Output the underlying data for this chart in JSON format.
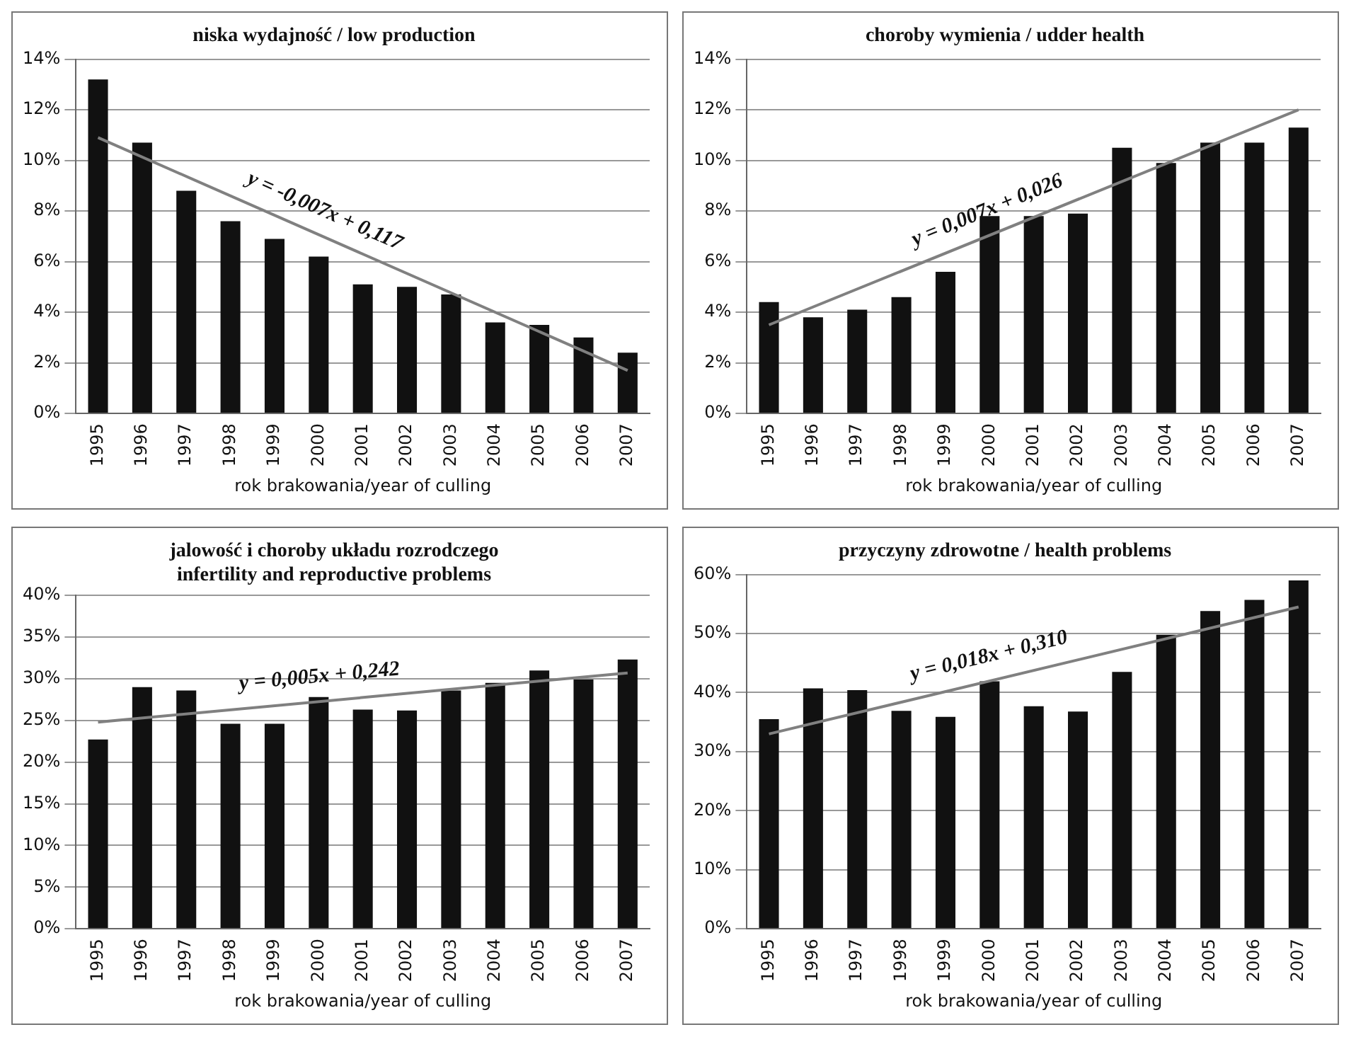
{
  "chart_data": [
    {
      "type": "bar",
      "title": "niska wydajność / low production",
      "xlabel": "rok brakowania/year of culling",
      "categories": [
        "1995",
        "1996",
        "1997",
        "1998",
        "1999",
        "2000",
        "2001",
        "2002",
        "2003",
        "2004",
        "2005",
        "2006",
        "2007"
      ],
      "series": [
        {
          "color": "#111111",
          "values": [
            13.2,
            10.7,
            8.8,
            7.6,
            6.9,
            6.2,
            5.1,
            5.0,
            4.7,
            3.6,
            3.5,
            3.0,
            2.4
          ]
        },
        {
          "type": "line",
          "color": "#808080",
          "values": [
            10.9,
            null,
            null,
            null,
            null,
            null,
            null,
            null,
            null,
            null,
            null,
            null,
            1.7
          ]
        }
      ],
      "ylim": [
        0,
        14
      ],
      "yticks": [
        {
          "value": 0,
          "label": "0%"
        },
        {
          "value": 2,
          "label": "2%"
        },
        {
          "value": 4,
          "label": "4%"
        },
        {
          "value": 6,
          "label": "6%"
        },
        {
          "value": 8,
          "label": "8%"
        },
        {
          "value": 10,
          "label": "10%"
        },
        {
          "value": 12,
          "label": "12%"
        },
        {
          "value": 14,
          "label": "14%"
        }
      ],
      "grid": "y",
      "annotations": [
        "y = -0,007x + 0,117"
      ]
    },
    {
      "type": "bar",
      "title": "choroby wymienia / udder health",
      "xlabel": "rok brakowania/year of culling",
      "categories": [
        "1995",
        "1996",
        "1997",
        "1998",
        "1999",
        "2000",
        "2001",
        "2002",
        "2003",
        "2004",
        "2005",
        "2006",
        "2007"
      ],
      "series": [
        {
          "color": "#111111",
          "values": [
            4.4,
            3.8,
            4.1,
            4.6,
            5.6,
            7.8,
            7.8,
            7.9,
            10.5,
            9.9,
            10.7,
            10.7,
            11.3
          ]
        },
        {
          "type": "line",
          "color": "#808080",
          "values": [
            3.5,
            null,
            null,
            null,
            null,
            null,
            null,
            null,
            null,
            null,
            null,
            null,
            12.0
          ]
        }
      ],
      "ylim": [
        0,
        14
      ],
      "yticks": [
        {
          "value": 0,
          "label": "0%"
        },
        {
          "value": 2,
          "label": "2%"
        },
        {
          "value": 4,
          "label": "4%"
        },
        {
          "value": 6,
          "label": "6%"
        },
        {
          "value": 8,
          "label": "8%"
        },
        {
          "value": 10,
          "label": "10%"
        },
        {
          "value": 12,
          "label": "12%"
        },
        {
          "value": 14,
          "label": "14%"
        }
      ],
      "grid": "y",
      "annotations": [
        "y = 0,007x + 0,026"
      ]
    },
    {
      "type": "bar",
      "title": "jalowość i choroby układu rozrodczego",
      "subtitle": "infertility and reproductive problems",
      "xlabel": "rok brakowania/year of culling",
      "categories": [
        "1995",
        "1996",
        "1997",
        "1998",
        "1999",
        "2000",
        "2001",
        "2002",
        "2003",
        "2004",
        "2005",
        "2006",
        "2007"
      ],
      "series": [
        {
          "color": "#111111",
          "values": [
            22.7,
            29.0,
            28.6,
            24.6,
            24.6,
            27.8,
            26.3,
            26.2,
            28.6,
            29.5,
            31.0,
            29.9,
            32.3
          ]
        },
        {
          "type": "line",
          "color": "#808080",
          "values": [
            24.8,
            null,
            null,
            null,
            null,
            null,
            null,
            null,
            null,
            null,
            null,
            null,
            30.7
          ]
        }
      ],
      "ylim": [
        0,
        40
      ],
      "yticks": [
        {
          "value": 0,
          "label": "0%"
        },
        {
          "value": 5,
          "label": "5%"
        },
        {
          "value": 10,
          "label": "10%"
        },
        {
          "value": 15,
          "label": "15%"
        },
        {
          "value": 20,
          "label": "20%"
        },
        {
          "value": 25,
          "label": "25%"
        },
        {
          "value": 30,
          "label": "30%"
        },
        {
          "value": 35,
          "label": "35%"
        },
        {
          "value": 40,
          "label": "40%"
        }
      ],
      "grid": "y",
      "annotations": [
        "y = 0,005x + 0,242"
      ]
    },
    {
      "type": "bar",
      "title": "przyczyny zdrowotne / health problems",
      "xlabel": "rok brakowania/year of culling",
      "categories": [
        "1995",
        "1996",
        "1997",
        "1998",
        "1999",
        "2000",
        "2001",
        "2002",
        "2003",
        "2004",
        "2005",
        "2006",
        "2007"
      ],
      "series": [
        {
          "color": "#111111",
          "values": [
            35.5,
            40.7,
            40.4,
            36.9,
            35.9,
            41.9,
            37.7,
            36.8,
            43.5,
            49.8,
            53.8,
            55.7,
            59.0
          ]
        },
        {
          "type": "line",
          "color": "#808080",
          "values": [
            33.0,
            null,
            null,
            null,
            null,
            null,
            null,
            null,
            null,
            null,
            null,
            null,
            54.5
          ]
        }
      ],
      "ylim": [
        0,
        60
      ],
      "yticks": [
        {
          "value": 0,
          "label": "0%"
        },
        {
          "value": 10,
          "label": "10%"
        },
        {
          "value": 20,
          "label": "20%"
        },
        {
          "value": 30,
          "label": "30%"
        },
        {
          "value": 40,
          "label": "40%"
        },
        {
          "value": 50,
          "label": "50%"
        },
        {
          "value": 60,
          "label": "60%"
        }
      ],
      "grid": "y",
      "annotations": [
        "y = 0,018x + 0,310"
      ]
    }
  ]
}
